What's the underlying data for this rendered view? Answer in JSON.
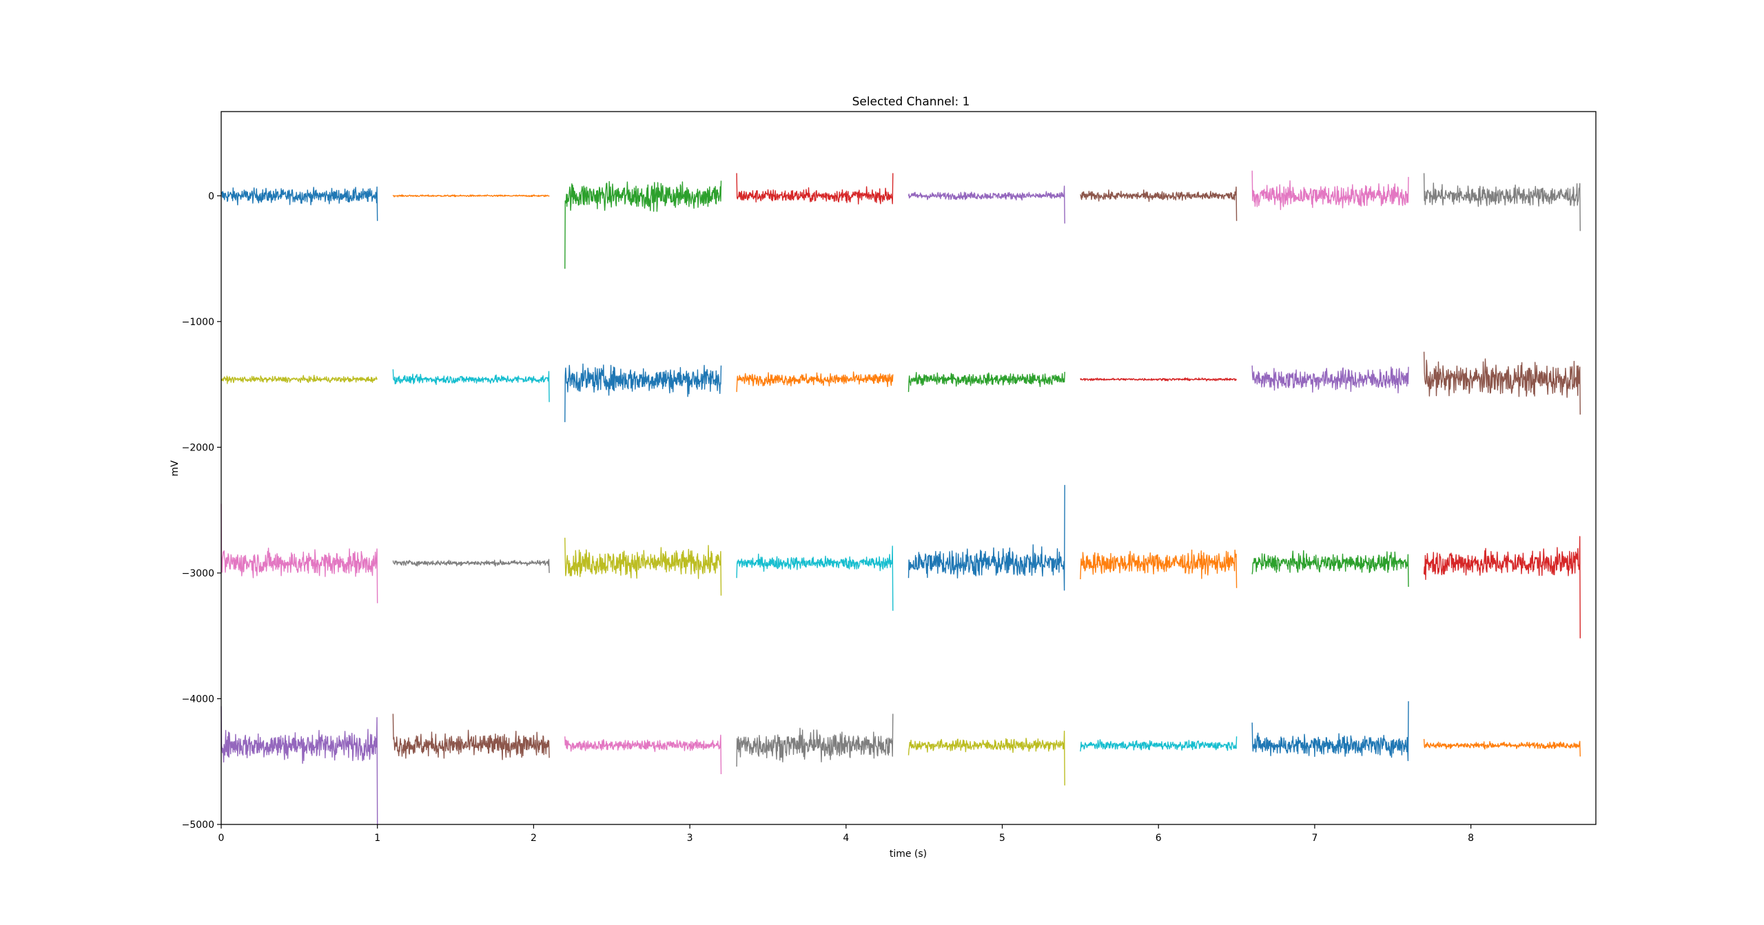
{
  "chart_data": {
    "type": "line",
    "title": "Selected Channel: 1",
    "xlabel": "time (s)",
    "ylabel": "mV",
    "xlim": [
      0,
      8.8
    ],
    "ylim": [
      -5000,
      670
    ],
    "xticks": [
      0,
      1,
      2,
      3,
      4,
      5,
      6,
      7,
      8
    ],
    "yticks": [
      0,
      -1000,
      -2000,
      -3000,
      -4000,
      -5000
    ],
    "ytick_labels": [
      "0",
      "−1000",
      "−2000",
      "−3000",
      "−4000",
      "−5000"
    ],
    "grid": false,
    "legend": "none",
    "rows": [
      {
        "baseline": 0,
        "segments": [
          {
            "start": 0.0,
            "end": 1.0,
            "amp": 50,
            "color": "#1f77b4",
            "spike_start": 0,
            "spike_end": -200
          },
          {
            "start": 1.1,
            "end": 2.1,
            "amp": 6,
            "color": "#ff7f0e",
            "spike_start": 0,
            "spike_end": 0
          },
          {
            "start": 2.2,
            "end": 3.2,
            "amp": 90,
            "color": "#2ca02c",
            "spike_start": -580,
            "spike_end": 120
          },
          {
            "start": 3.3,
            "end": 4.3,
            "amp": 45,
            "color": "#d62728",
            "spike_start": 180,
            "spike_end": 180
          },
          {
            "start": 4.4,
            "end": 5.4,
            "amp": 25,
            "color": "#9467bd",
            "spike_start": 0,
            "spike_end": -220
          },
          {
            "start": 5.5,
            "end": 6.5,
            "amp": 30,
            "color": "#8c564b",
            "spike_start": 0,
            "spike_end": -200
          },
          {
            "start": 6.6,
            "end": 7.6,
            "amp": 80,
            "color": "#e377c2",
            "spike_start": 200,
            "spike_end": 150
          },
          {
            "start": 7.7,
            "end": 8.7,
            "amp": 70,
            "color": "#7f7f7f",
            "spike_start": 180,
            "spike_end": -280
          }
        ]
      },
      {
        "baseline": -1460,
        "segments": [
          {
            "start": 0.0,
            "end": 1.0,
            "amp": 20,
            "color": "#bcbd22",
            "spike_start": 0,
            "spike_end": 0
          },
          {
            "start": 1.1,
            "end": 2.1,
            "amp": 28,
            "color": "#17becf",
            "spike_start": -1380,
            "spike_end": -1640
          },
          {
            "start": 2.2,
            "end": 3.2,
            "amp": 90,
            "color": "#1f77b4",
            "spike_start": -1800,
            "spike_end": -1350
          },
          {
            "start": 3.3,
            "end": 4.3,
            "amp": 40,
            "color": "#ff7f0e",
            "spike_start": -1560,
            "spike_end": -1420
          },
          {
            "start": 4.4,
            "end": 5.4,
            "amp": 40,
            "color": "#2ca02c",
            "spike_start": -1560,
            "spike_end": -1400
          },
          {
            "start": 5.5,
            "end": 6.5,
            "amp": 8,
            "color": "#d62728",
            "spike_start": 0,
            "spike_end": 0
          },
          {
            "start": 6.6,
            "end": 7.6,
            "amp": 75,
            "color": "#9467bd",
            "spike_start": -1350,
            "spike_end": -1360
          },
          {
            "start": 7.7,
            "end": 8.7,
            "amp": 110,
            "color": "#8c564b",
            "spike_start": -1240,
            "spike_end": -1740
          }
        ]
      },
      {
        "baseline": -2920,
        "segments": [
          {
            "start": 0.0,
            "end": 1.0,
            "amp": 85,
            "color": "#e377c2",
            "spike_start": -2450,
            "spike_end": -3240
          },
          {
            "start": 1.1,
            "end": 2.1,
            "amp": 18,
            "color": "#7f7f7f",
            "spike_start": -2900,
            "spike_end": -3000
          },
          {
            "start": 2.2,
            "end": 3.2,
            "amp": 90,
            "color": "#bcbd22",
            "spike_start": -2720,
            "spike_end": -3180
          },
          {
            "start": 3.3,
            "end": 4.3,
            "amp": 45,
            "color": "#17becf",
            "spike_start": -3040,
            "spike_end": -3300
          },
          {
            "start": 4.4,
            "end": 5.4,
            "amp": 100,
            "color": "#1f77b4",
            "spike_start": -3040,
            "spike_end": -2300
          },
          {
            "start": 5.5,
            "end": 6.5,
            "amp": 75,
            "color": "#ff7f0e",
            "spike_start": -3050,
            "spike_end": -3120
          },
          {
            "start": 6.6,
            "end": 7.6,
            "amp": 60,
            "color": "#2ca02c",
            "spike_start": -3010,
            "spike_end": -3110
          },
          {
            "start": 7.7,
            "end": 8.7,
            "amp": 90,
            "color": "#d62728",
            "spike_start": -3010,
            "spike_end": -3520
          }
        ]
      },
      {
        "baseline": -4370,
        "segments": [
          {
            "start": 0.0,
            "end": 1.0,
            "amp": 95,
            "color": "#9467bd",
            "spike_start": -4060,
            "spike_end": -5000
          },
          {
            "start": 1.1,
            "end": 2.1,
            "amp": 80,
            "color": "#8c564b",
            "spike_start": -4120,
            "spike_end": -4470
          },
          {
            "start": 2.2,
            "end": 3.2,
            "amp": 35,
            "color": "#e377c2",
            "spike_start": -4300,
            "spike_end": -4600
          },
          {
            "start": 3.3,
            "end": 4.3,
            "amp": 90,
            "color": "#7f7f7f",
            "spike_start": -4540,
            "spike_end": -4120
          },
          {
            "start": 4.4,
            "end": 5.4,
            "amp": 40,
            "color": "#bcbd22",
            "spike_start": -4450,
            "spike_end": -4690
          },
          {
            "start": 5.5,
            "end": 6.5,
            "amp": 30,
            "color": "#17becf",
            "spike_start": -4420,
            "spike_end": -4300
          },
          {
            "start": 6.6,
            "end": 7.6,
            "amp": 70,
            "color": "#1f77b4",
            "spike_start": -4190,
            "spike_end": -4020
          },
          {
            "start": 7.7,
            "end": 8.7,
            "amp": 22,
            "color": "#ff7f0e",
            "spike_start": -4320,
            "spike_end": -4460
          }
        ]
      }
    ]
  }
}
